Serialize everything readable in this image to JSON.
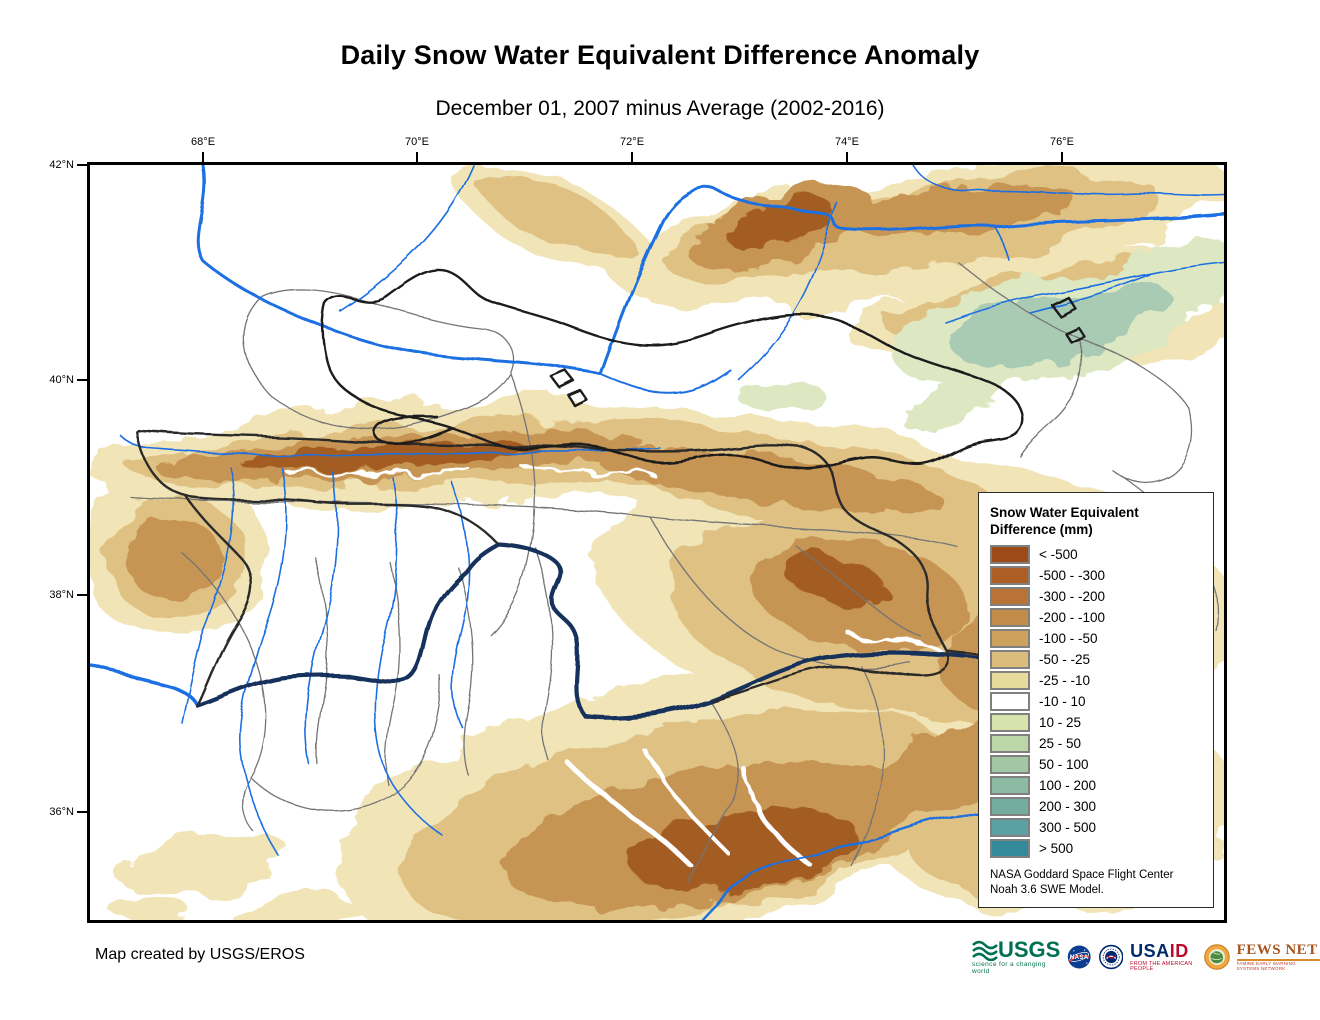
{
  "page": {
    "title": "Daily Snow Water Equivalent Difference Anomaly",
    "subtitle": "December 01, 2007 minus Average (2002-2016)",
    "credit": "Map created by USGS/EROS"
  },
  "map": {
    "lon_ticks": [
      {
        "label": "68°E",
        "pct": 9.97
      },
      {
        "label": "70°E",
        "pct": 28.84
      },
      {
        "label": "72°E",
        "pct": 47.8
      },
      {
        "label": "74°E",
        "pct": 66.75
      },
      {
        "label": "76°E",
        "pct": 85.71
      }
    ],
    "lat_ticks": [
      {
        "label": "42°N",
        "pct": 0.0
      },
      {
        "label": "40°N",
        "pct": 28.48
      },
      {
        "label": "38°N",
        "pct": 56.95
      },
      {
        "label": "36°N",
        "pct": 85.7
      }
    ]
  },
  "legend": {
    "title_line1": "Snow Water Equivalent",
    "title_line2": "Difference (mm)",
    "entries": [
      {
        "label": "< -500",
        "color": "#9C4A18"
      },
      {
        "label": "-500 - -300",
        "color": "#AC5E24"
      },
      {
        "label": "-300 - -200",
        "color": "#B97335"
      },
      {
        "label": "-200 - -100",
        "color": "#C28C49"
      },
      {
        "label": "-100 - -50",
        "color": "#CDA25D"
      },
      {
        "label": "-50 - -25",
        "color": "#DBBC7C"
      },
      {
        "label": "-25 - -10",
        "color": "#E8DA9B"
      },
      {
        "label": "-10 - 10",
        "color": "#FFFFFF"
      },
      {
        "label": "10 - 25",
        "color": "#D6E3AC"
      },
      {
        "label": "25 - 50",
        "color": "#BDD6A8"
      },
      {
        "label": "50 - 100",
        "color": "#A3C7A4"
      },
      {
        "label": "100 - 200",
        "color": "#8CBAA2"
      },
      {
        "label": "200 - 300",
        "color": "#74ACA0"
      },
      {
        "label": "300 - 500",
        "color": "#5BA0A2"
      },
      {
        "label": "> 500",
        "color": "#338A9B"
      }
    ],
    "note_line1": "NASA Goddard Space Flight Center",
    "note_line2": "Noah 3.6 SWE Model."
  },
  "logos": {
    "usgs": {
      "text": "USGS",
      "tagline": "science for a changing world"
    },
    "nasa": {
      "text": "NASA"
    },
    "usaid": {
      "text_usa": "USA",
      "text_id": "ID",
      "tagline": "FROM THE AMERICAN PEOPLE"
    },
    "fews": {
      "text": "FEWS NET",
      "tagline": "FAMINE EARLY WARNING SYSTEMS NETWORK"
    }
  },
  "colors": {
    "river": "#1E6FE1",
    "river_dark": "#14325C",
    "boundary_dark": "#2A2A2A",
    "admin_gray": "#757575",
    "frame": "#000000"
  }
}
